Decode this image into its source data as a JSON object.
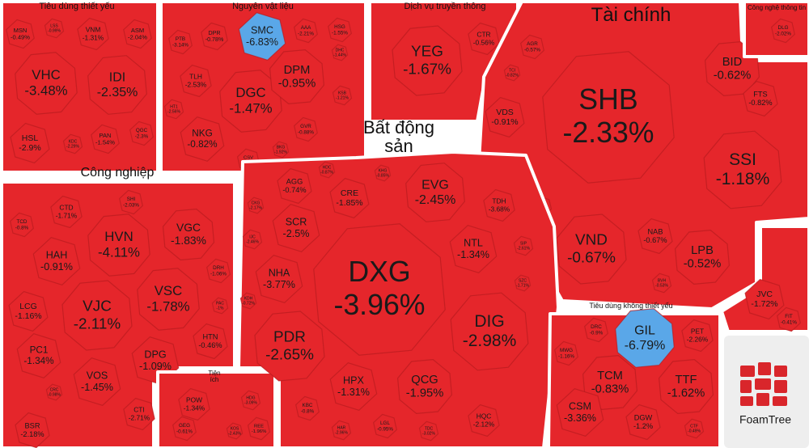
{
  "chart_data": {
    "type": "treemap",
    "logo": "FoamTree",
    "groups": [
      {
        "name": "Tiêu dùng thiết yếu",
        "labels": [
          "MSN",
          "LSS",
          "VNM",
          "ASM",
          "VHC",
          "IDI",
          "HSL",
          "KDC",
          "PAN",
          "QGC"
        ],
        "values": [
          -0.49,
          -0.99,
          -1.31,
          -2.04,
          -3.48,
          -2.35,
          -2.9,
          -2.29,
          -1.54,
          -2.3
        ],
        "value_labels": [
          "-0.49%",
          "-0.99%",
          "-1.31%",
          "-2.04%",
          "-3.48%",
          "-2.35%",
          "-2.9%",
          "-2.29%",
          "-1.54%",
          "-2.3%"
        ],
        "colors": [
          "#e5262b",
          "#e5262b",
          "#e5262b",
          "#e5262b",
          "#e5262b",
          "#e5262b",
          "#e5262b",
          "#e5262b",
          "#e5262b",
          "#e5262b"
        ]
      },
      {
        "name": "Nguyên vật liệu",
        "labels": [
          "PTB",
          "DPR",
          "SMC",
          "AAA",
          "HSG",
          "DHC",
          "TLH",
          "DGC",
          "DPM",
          "KSB",
          "HT1",
          "NKG",
          "CSV",
          "GVR",
          "BKG"
        ],
        "values": [
          -3.14,
          -0.78,
          -6.83,
          -2.21,
          -1.55,
          -1.44,
          -2.53,
          -1.47,
          -0.95,
          -1.21,
          -2.56,
          -0.82,
          -1.67,
          -0.88,
          -1.92
        ],
        "value_labels": [
          "-3.14%",
          "-0.78%",
          "-6.83%",
          "-2.21%",
          "-1.55%",
          "-1.44%",
          "-2.53%",
          "-1.47%",
          "-0.95%",
          "-1.21%",
          "-2.56%",
          "-0.82%",
          "-1.67%",
          "-0.88%",
          "-1.92%"
        ],
        "colors": [
          "#e5262b",
          "#e5262b",
          "#5aa7e8",
          "#e5262b",
          "#e5262b",
          "#e5262b",
          "#e5262b",
          "#e5262b",
          "#e5262b",
          "#e5262b",
          "#e5262b",
          "#e5262b",
          "#e5262b",
          "#e5262b",
          "#e5262b"
        ]
      },
      {
        "name": "Dịch vụ truyền thông",
        "labels": [
          "YEG",
          "CTR"
        ],
        "values": [
          -1.67,
          -0.56
        ],
        "value_labels": [
          "-1.67%",
          "-0.56%"
        ],
        "colors": [
          "#e5262b",
          "#e5262b"
        ]
      },
      {
        "name": "Tài chính",
        "labels": [
          "AGR",
          "TCI",
          "VDS",
          "SHB",
          "BID",
          "FTS",
          "SSI",
          "VAS",
          "VND",
          "NAB",
          "LPB",
          "BVH"
        ],
        "values": [
          -0.57,
          -0.82,
          -0.91,
          -2.33,
          -0.62,
          -0.82,
          -1.18,
          -0.42,
          -0.67,
          -0.67,
          -0.52,
          -0.53
        ],
        "value_labels": [
          "-0.57%",
          "-0.82%",
          "-0.91%",
          "-2.33%",
          "-0.62%",
          "-0.82%",
          "-1.18%",
          "-0.42%",
          "-0.67%",
          "-0.67%",
          "-0.52%",
          "-0.53%"
        ],
        "colors": [
          "#e5262b",
          "#e5262b",
          "#e5262b",
          "#e5262b",
          "#e5262b",
          "#e5262b",
          "#e5262b",
          "#e5262b",
          "#e5262b",
          "#e5262b",
          "#e5262b",
          "#e5262b"
        ]
      },
      {
        "name": "Công nghệ thông tin",
        "labels": [
          "DLG"
        ],
        "values": [
          -2.02
        ],
        "value_labels": [
          "-2.02%"
        ],
        "colors": [
          "#e5262b"
        ]
      },
      {
        "labels": [
          "JVC",
          "FIT"
        ],
        "values": [
          -1.72,
          -0.41
        ],
        "value_labels": [
          "-1.72%",
          "-0.41%"
        ],
        "colors": [
          "#e5262b",
          "#e5262b"
        ]
      },
      {
        "name": "Công nghiệp",
        "labels": [
          "TCD",
          "CTD",
          "SHI",
          "HAH",
          "HVN",
          "VGC",
          "LCG",
          "VJC",
          "VSC",
          "DRH",
          "PAC",
          "PC1",
          "DPG",
          "HTN",
          "VOS",
          "CTI",
          "BSR",
          "CRC"
        ],
        "values": [
          -0.8,
          -1.71,
          -2.03,
          -0.91,
          -4.11,
          -1.83,
          -1.16,
          -2.11,
          -1.78,
          -1.06,
          -1,
          -1.34,
          -1.09,
          -0.46,
          -1.45,
          -2.71,
          -2.18,
          -0.98
        ],
        "value_labels": [
          "-0.8%",
          "-1.71%",
          "-2.03%",
          "-0.91%",
          "-4.11%",
          "-1.83%",
          "-1.16%",
          "-2.11%",
          "-1.78%",
          "-1.06%",
          "-1%",
          "-1.34%",
          "-1.09%",
          "-0.46%",
          "-1.45%",
          "-2.71%",
          "-2.18%",
          "-0.98%"
        ],
        "colors": [
          "#e5262b",
          "#e5262b",
          "#e5262b",
          "#e5262b",
          "#e5262b",
          "#e5262b",
          "#e5262b",
          "#e5262b",
          "#e5262b",
          "#e5262b",
          "#e5262b",
          "#e5262b",
          "#e5262b",
          "#e5262b",
          "#e5262b",
          "#e5262b",
          "#e5262b",
          "#e5262b"
        ]
      },
      {
        "name": "Tiện ích",
        "labels": [
          "POW",
          "HDG",
          "GEG",
          "KOS",
          "REE"
        ],
        "values": [
          -1.34,
          -3.09,
          -0.61,
          -2.43,
          -1.96
        ],
        "value_labels": [
          "-1.34%",
          "-3.09%",
          "-0.61%",
          "-2.43%",
          "-1.96%"
        ],
        "colors": [
          "#e5262b",
          "#e5262b",
          "#e5262b",
          "#e5262b",
          "#e5262b"
        ]
      },
      {
        "name": "Bất động sản",
        "labels": [
          "AGG",
          "HDC",
          "KHG",
          "EVG",
          "CRE",
          "TDH",
          "CKG",
          "SCR",
          "IJC",
          "NTL",
          "SIP",
          "NHA",
          "DXG",
          "KDH",
          "SZC",
          "PDR",
          "DIG",
          "HPX",
          "QCG",
          "KBC",
          "HAR",
          "LGL",
          "TDC",
          "HQC"
        ],
        "values": [
          -0.74,
          -0.87,
          -0.85,
          -2.45,
          -1.85,
          -3.68,
          -2.17,
          -2.5,
          -2.46,
          -1.34,
          -2.61,
          -3.77,
          -3.96,
          -0.72,
          -1.71,
          -2.65,
          -2.98,
          -1.31,
          -1.95,
          -0.8,
          -2.96,
          -0.95,
          -3.02,
          -2.12
        ],
        "value_labels": [
          "-0.74%",
          "-0.87%",
          "-0.85%",
          "-2.45%",
          "-1.85%",
          "-3.68%",
          "-2.17%",
          "-2.5%",
          "-2.46%",
          "-1.34%",
          "-2.61%",
          "-3.77%",
          "-3.96%",
          "-0.72%",
          "-1.71%",
          "-2.65%",
          "-2.98%",
          "-1.31%",
          "-1.95%",
          "-0.8%",
          "-2.96%",
          "-0.95%",
          "-3.02%",
          "-2.12%"
        ],
        "colors": [
          "#e5262b",
          "#e5262b",
          "#e5262b",
          "#e5262b",
          "#e5262b",
          "#e5262b",
          "#e5262b",
          "#e5262b",
          "#e5262b",
          "#e5262b",
          "#e5262b",
          "#e5262b",
          "#e5262b",
          "#e5262b",
          "#e5262b",
          "#e5262b",
          "#e5262b",
          "#e5262b",
          "#e5262b",
          "#e5262b",
          "#e5262b",
          "#e5262b",
          "#e5262b",
          "#e5262b"
        ]
      },
      {
        "name": "Tiêu dùng không thiết yếu",
        "labels": [
          "DRC",
          "GIL",
          "PET",
          "MWG",
          "TCM",
          "TTF",
          "CSM",
          "DGW",
          "CTF"
        ],
        "values": [
          -0.9,
          -6.79,
          -2.26,
          -1.16,
          -0.83,
          -1.62,
          -3.36,
          -1.2,
          -0.49
        ],
        "value_labels": [
          "-0.9%",
          "-6.79%",
          "-2.26%",
          "-1.16%",
          "-0.83%",
          "-1.62%",
          "-3.36%",
          "-1.2%",
          "-0.49%"
        ],
        "colors": [
          "#e5262b",
          "#5aa7e8",
          "#e5262b",
          "#e5262b",
          "#e5262b",
          "#e5262b",
          "#e5262b",
          "#e5262b",
          "#e5262b"
        ]
      }
    ]
  }
}
